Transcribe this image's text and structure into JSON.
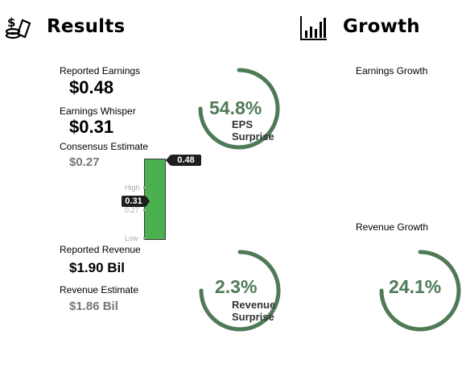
{
  "results": {
    "title": "Results",
    "icon": "money-stack-icon",
    "reported_earnings": {
      "label": "Reported Earnings",
      "value": "$0.48"
    },
    "earnings_whisper": {
      "label": "Earnings Whisper",
      "value": "$0.31"
    },
    "consensus_estimate": {
      "label": "Consensus Estimate",
      "value": "$0.27"
    },
    "reported_revenue": {
      "label": "Reported Revenue",
      "value": "$1.90 Bil"
    },
    "revenue_estimate": {
      "label": "Revenue Estimate",
      "value": "$1.86 Bil"
    },
    "eps_surprise": {
      "percent": "54.8%",
      "percent_value": 54.8,
      "caption_line1": "EPS",
      "caption_line2": "Surprise"
    },
    "revenue_surprise": {
      "percent": "2.3%",
      "percent_value": 2.3,
      "caption_line1": "Revenue",
      "caption_line2": "Surprise"
    },
    "range_bar": {
      "high_label": "High",
      "low_label": "Low",
      "consensus_tick": "0.27",
      "reported_marker": "0.48",
      "whisper_marker": "0.31",
      "bar_color": "#4caf50"
    }
  },
  "growth": {
    "title": "Growth",
    "icon": "bar-chart-icon",
    "earnings_growth_label": "Earnings Growth",
    "revenue_growth_label": "Revenue Growth",
    "revenue_growth": {
      "percent": "24.1%",
      "percent_value": 24.1
    }
  },
  "colors": {
    "accent": "#4e7a56",
    "bar": "#4caf50",
    "pill": "#1e1e1e",
    "muted": "#777777"
  }
}
